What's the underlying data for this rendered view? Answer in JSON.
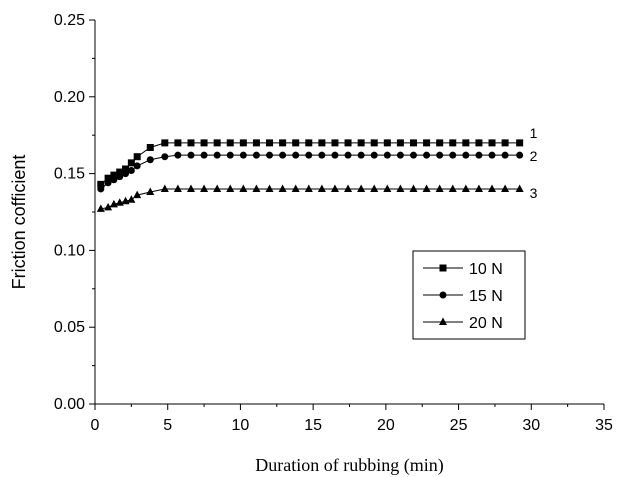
{
  "chart_data": {
    "type": "line",
    "xlabel": "Duration of rubbing (min)",
    "ylabel": "Friction cofficient",
    "xlim": [
      0,
      35
    ],
    "ylim": [
      0,
      0.25
    ],
    "x_ticks": [
      "0",
      "5",
      "10",
      "15",
      "20",
      "25",
      "30",
      "35"
    ],
    "y_ticks": [
      "0.00",
      "0.05",
      "0.10",
      "0.15",
      "0.20",
      "0.25"
    ],
    "legend_placement": "center-right",
    "series": [
      {
        "name": "10 N",
        "curve_label": "1",
        "marker": "square",
        "x": [
          0.4,
          0.9,
          1.3,
          1.7,
          2.1,
          2.5,
          2.9,
          3.8,
          4.8,
          5.7,
          6.6,
          7.5,
          8.4,
          9.3,
          10.2,
          11.1,
          12.0,
          12.9,
          13.8,
          14.7,
          15.6,
          16.5,
          17.4,
          18.3,
          19.2,
          20.1,
          21.0,
          21.9,
          22.8,
          23.7,
          24.6,
          25.5,
          26.4,
          27.3,
          28.2,
          29.2
        ],
        "values": [
          0.143,
          0.147,
          0.149,
          0.151,
          0.153,
          0.157,
          0.161,
          0.167,
          0.17,
          0.17,
          0.17,
          0.17,
          0.17,
          0.17,
          0.17,
          0.17,
          0.17,
          0.17,
          0.17,
          0.17,
          0.17,
          0.17,
          0.17,
          0.17,
          0.17,
          0.17,
          0.17,
          0.17,
          0.17,
          0.17,
          0.17,
          0.17,
          0.17,
          0.17,
          0.17,
          0.17
        ]
      },
      {
        "name": "15 N",
        "curve_label": "2",
        "marker": "circle",
        "x": [
          0.4,
          0.9,
          1.3,
          1.7,
          2.1,
          2.5,
          2.9,
          3.8,
          4.8,
          5.7,
          6.6,
          7.5,
          8.4,
          9.3,
          10.2,
          11.1,
          12.0,
          12.9,
          13.8,
          14.7,
          15.6,
          16.5,
          17.4,
          18.3,
          19.2,
          20.1,
          21.0,
          21.9,
          22.8,
          23.7,
          24.6,
          25.5,
          26.4,
          27.3,
          28.2,
          29.2
        ],
        "values": [
          0.14,
          0.144,
          0.146,
          0.148,
          0.15,
          0.152,
          0.155,
          0.159,
          0.161,
          0.162,
          0.162,
          0.162,
          0.162,
          0.162,
          0.162,
          0.162,
          0.162,
          0.162,
          0.162,
          0.162,
          0.162,
          0.162,
          0.162,
          0.162,
          0.162,
          0.162,
          0.162,
          0.162,
          0.162,
          0.162,
          0.162,
          0.162,
          0.162,
          0.162,
          0.162,
          0.162
        ]
      },
      {
        "name": "20 N",
        "curve_label": "3",
        "marker": "triangle",
        "x": [
          0.4,
          0.9,
          1.3,
          1.7,
          2.1,
          2.5,
          2.9,
          3.8,
          4.8,
          5.7,
          6.6,
          7.5,
          8.4,
          9.3,
          10.2,
          11.1,
          12.0,
          12.9,
          13.8,
          14.7,
          15.6,
          16.5,
          17.4,
          18.3,
          19.2,
          20.1,
          21.0,
          21.9,
          22.8,
          23.7,
          24.6,
          25.5,
          26.4,
          27.3,
          28.2,
          29.2
        ],
        "values": [
          0.127,
          0.128,
          0.13,
          0.131,
          0.132,
          0.133,
          0.136,
          0.138,
          0.14,
          0.14,
          0.14,
          0.14,
          0.14,
          0.14,
          0.14,
          0.14,
          0.14,
          0.14,
          0.14,
          0.14,
          0.14,
          0.14,
          0.14,
          0.14,
          0.14,
          0.14,
          0.14,
          0.14,
          0.14,
          0.14,
          0.14,
          0.14,
          0.14,
          0.14,
          0.14,
          0.14
        ]
      }
    ]
  }
}
